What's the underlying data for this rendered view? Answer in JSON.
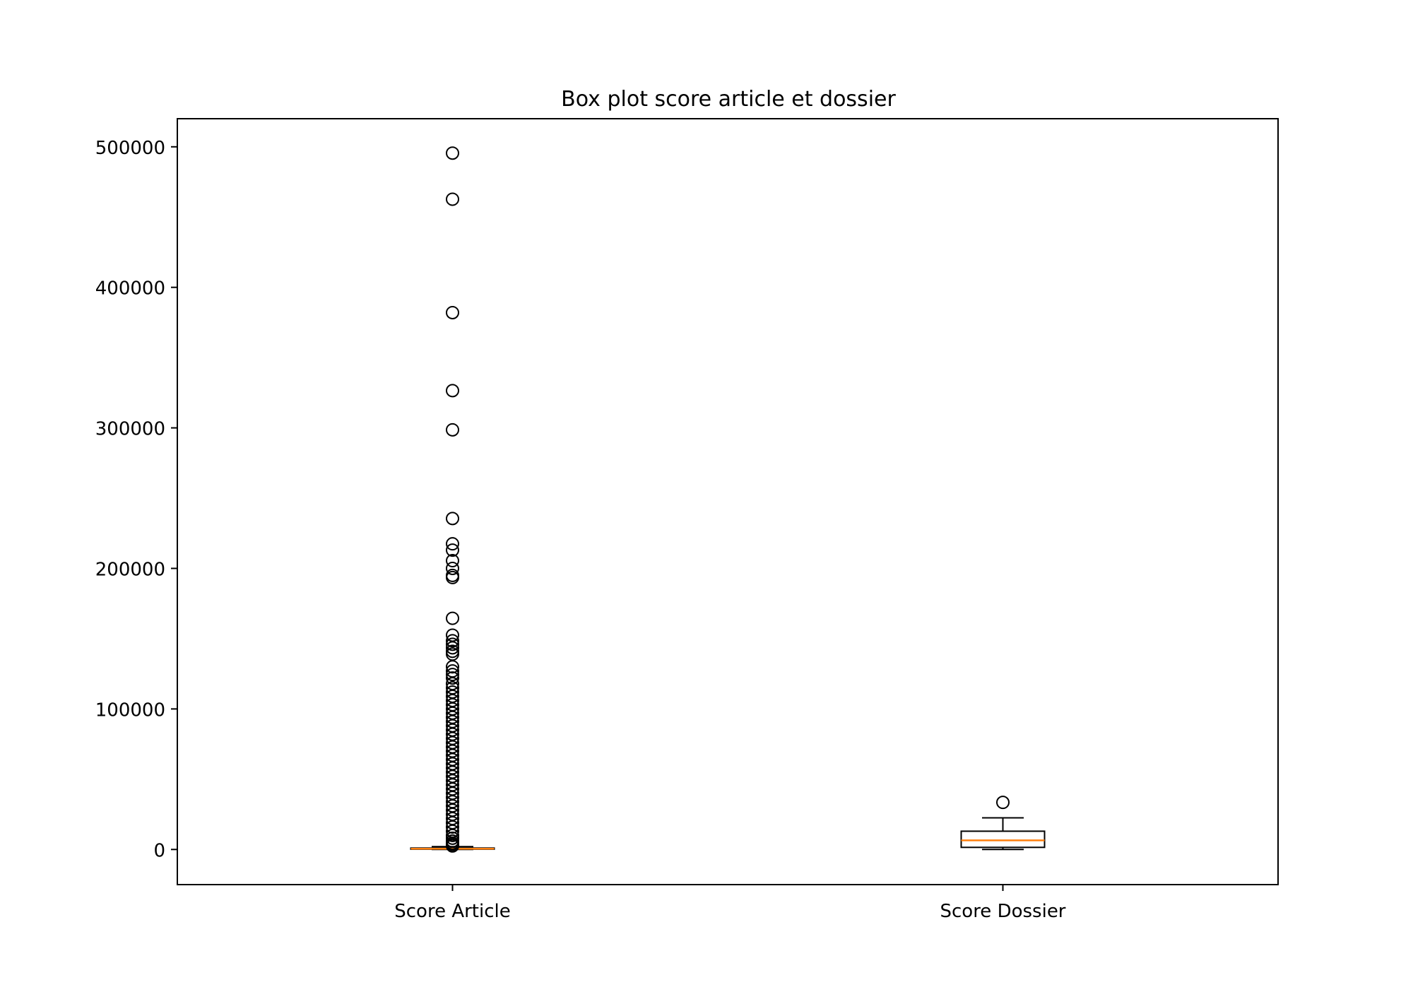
{
  "chart_data": {
    "type": "box",
    "title": "Box plot score article et dossier",
    "xlabel": "",
    "ylabel": "",
    "ylim": [
      -25000,
      520000
    ],
    "yticks": [
      0,
      100000,
      200000,
      300000,
      400000,
      500000
    ],
    "ytick_labels": [
      "0",
      "100000",
      "200000",
      "300000",
      "400000",
      "500000"
    ],
    "categories": [
      "Score Article",
      "Score Dossier"
    ],
    "grid": false,
    "legend": "none",
    "colors": {
      "box": "#000000",
      "median": "#ff7f0e",
      "flier": "#000000"
    },
    "series": [
      {
        "category": "Score Article",
        "whisker_low": 0,
        "q1": 200,
        "median": 500,
        "q3": 1000,
        "whisker_high": 2000,
        "outliers": [
          495500,
          462700,
          382000,
          326500,
          298600,
          235500,
          217500,
          213000,
          205500,
          200000,
          195000,
          193500,
          164500,
          152500,
          148500,
          146000,
          143500,
          141000,
          139000,
          130000,
          127000,
          124500,
          122000,
          118000,
          115000,
          112000,
          109000,
          106000,
          103000,
          100000,
          97000,
          94000,
          91000,
          88000,
          85000,
          82000,
          79000,
          76000,
          73000,
          70000,
          67000,
          64000,
          61000,
          58000,
          55000,
          52000,
          49000,
          46000,
          43000,
          40000,
          37000,
          34000,
          31000,
          28000,
          25000,
          22000,
          19000,
          16000,
          13000,
          10000,
          8000,
          6000,
          4500,
          3500,
          2500
        ]
      },
      {
        "category": "Score Dossier",
        "whisker_low": 0,
        "q1": 1500,
        "median": 6500,
        "q3": 13000,
        "whisker_high": 22500,
        "outliers": [
          33500
        ]
      }
    ]
  }
}
